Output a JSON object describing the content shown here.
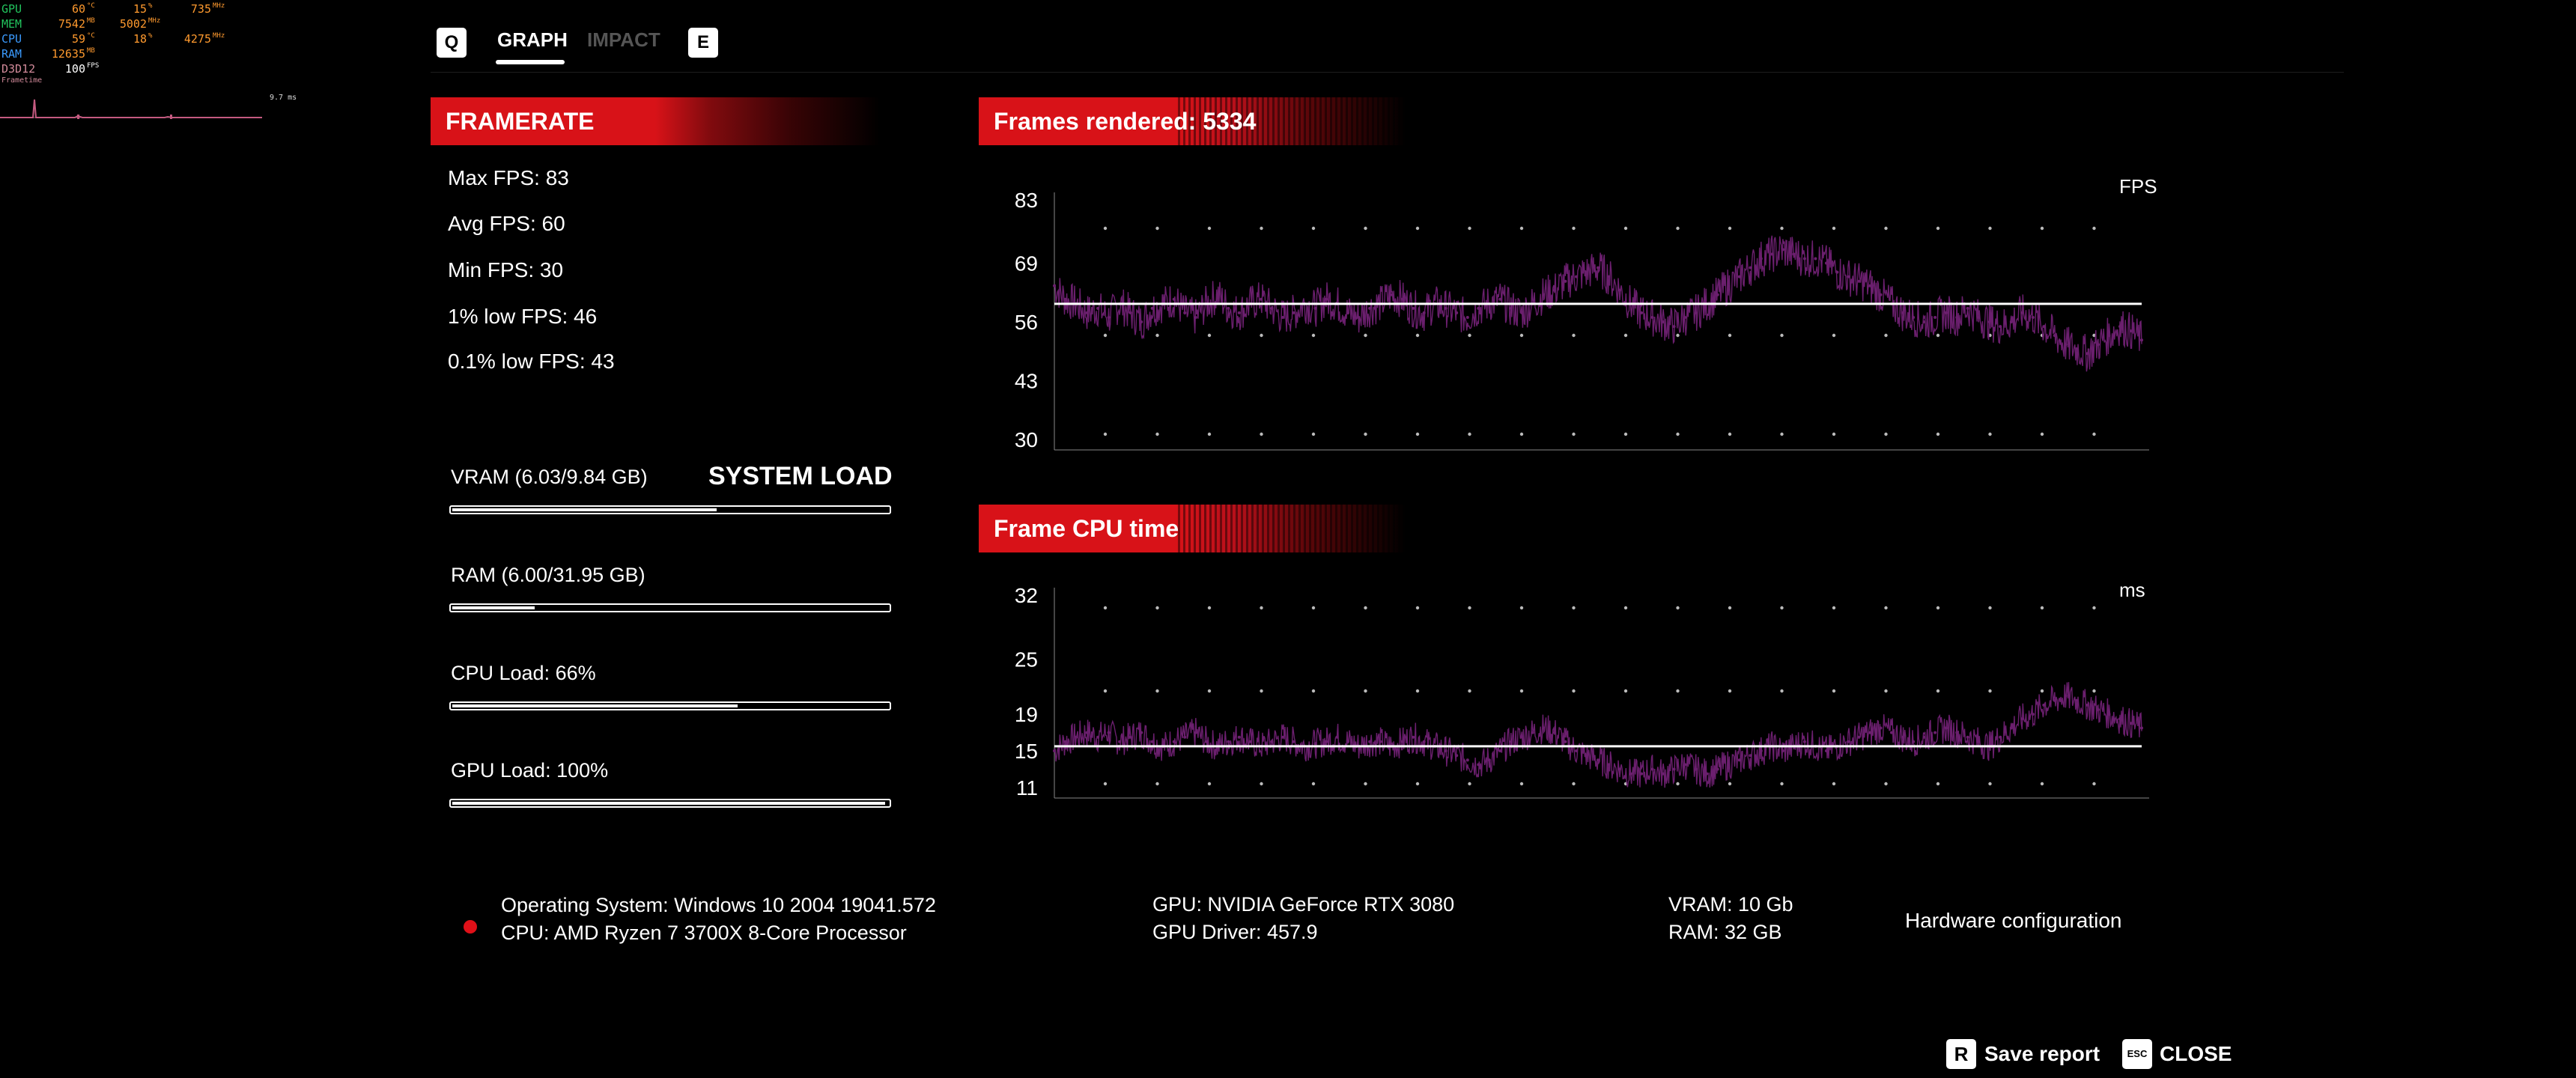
{
  "osd": {
    "rows": [
      {
        "label": "GPU",
        "label_color": "#22c55e",
        "v1": "60",
        "u1": "°C",
        "v2": "15",
        "u2": "%",
        "v3": "735",
        "u3": "MHz"
      },
      {
        "label": "MEM",
        "label_color": "#22c55e",
        "v1": "7542",
        "u1": "MB",
        "v2": "5002",
        "u2": "MHz",
        "v3": "",
        "u3": ""
      },
      {
        "label": "CPU",
        "label_color": "#3b9bff",
        "v1": "59",
        "u1": "°C",
        "v2": "18",
        "u2": "%",
        "v3": "4275",
        "u3": "MHz"
      },
      {
        "label": "RAM",
        "label_color": "#3b9bff",
        "v1": "12635",
        "u1": "MB",
        "v2": "",
        "u2": "",
        "v3": "",
        "u3": ""
      },
      {
        "label": "D3D12",
        "label_color": "#d28a9a",
        "v1": "100",
        "u1": "FPS",
        "v2": "",
        "u2": "",
        "v3": "",
        "u3": ""
      }
    ],
    "frametime_label": "Frametime",
    "frametime_value": "9.7 ms"
  },
  "tabs": {
    "left_key": "Q",
    "right_key": "E",
    "items": [
      {
        "label": "GRAPH",
        "active": true
      },
      {
        "label": "IMPACT",
        "active": false
      }
    ]
  },
  "framerate": {
    "title": "FRAMERATE",
    "stats": [
      "Max FPS: 83",
      "Avg FPS: 60",
      "Min FPS: 30",
      "1% low FPS: 46",
      "0.1% low FPS: 43"
    ]
  },
  "system_load": {
    "title": "SYSTEM LOAD",
    "items": [
      {
        "label": "VRAM (6.03/9.84 GB)",
        "fraction": 0.61
      },
      {
        "label": "RAM (6.00/31.95 GB)",
        "fraction": 0.19
      },
      {
        "label": "CPU Load: 66%",
        "fraction": 0.66
      },
      {
        "label": "GPU Load: 100%",
        "fraction": 1.0
      }
    ]
  },
  "fps_chart": {
    "banner": "Frames rendered: 5334",
    "unit": "FPS"
  },
  "cpu_chart": {
    "banner": "Frame CPU time",
    "unit": "ms"
  },
  "chart_data": [
    {
      "type": "line",
      "title": "Frames rendered: 5334",
      "ylabel": "FPS",
      "yticks": [
        30,
        43,
        56,
        69,
        83
      ],
      "ylim": [
        30,
        83
      ],
      "average": 60,
      "series_color": "#6b1f6e",
      "series": [
        {
          "values": [
            64,
            61,
            60,
            58,
            59,
            57,
            60,
            58,
            56,
            59,
            60,
            61,
            58,
            57,
            60,
            62,
            59,
            58,
            60,
            61,
            59,
            57,
            58,
            60,
            59,
            61,
            60,
            58,
            57,
            59,
            60,
            62,
            61,
            59,
            58,
            60,
            59,
            58,
            57,
            59,
            60,
            61,
            59,
            58,
            60,
            62,
            63,
            65,
            66,
            67,
            68,
            66,
            63,
            60,
            58,
            57,
            56,
            55,
            57,
            58,
            60,
            62,
            64,
            66,
            68,
            70,
            71,
            72,
            71,
            70,
            70,
            69,
            67,
            66,
            65,
            64,
            62,
            60,
            58,
            57,
            56,
            57,
            58,
            57,
            59,
            57,
            56,
            55,
            56,
            58,
            57,
            55,
            53,
            51,
            50,
            49,
            51,
            53,
            55,
            54,
            52
          ]
        }
      ]
    },
    {
      "type": "line",
      "title": "Frame CPU time",
      "ylabel": "ms",
      "yticks": [
        11,
        15,
        19,
        25,
        32
      ],
      "ylim": [
        11,
        32
      ],
      "average": 15.5,
      "series_color": "#6b1f6e",
      "series": [
        {
          "values": [
            15,
            16,
            16.5,
            17,
            16.5,
            17,
            16,
            16.5,
            17,
            16,
            15.5,
            16,
            16.5,
            17,
            16,
            15.5,
            16,
            16.5,
            16,
            15.5,
            16,
            16.5,
            16,
            15.5,
            15.8,
            16,
            16.5,
            16,
            15.5,
            16,
            16,
            15.5,
            16,
            16.5,
            16,
            15.5,
            15,
            14.5,
            14,
            13.5,
            14,
            15,
            16,
            16.5,
            17,
            17.5,
            17,
            16,
            15,
            14.5,
            14,
            13.5,
            13,
            12.5,
            12.5,
            13,
            12.5,
            13,
            13.5,
            13,
            12.5,
            13,
            13.5,
            14,
            14.5,
            15,
            15.5,
            15,
            15.5,
            16,
            15.5,
            15,
            15.5,
            16,
            16.5,
            17,
            17.5,
            17,
            16.5,
            16,
            16.5,
            17,
            17.5,
            17,
            16.5,
            16,
            15.5,
            16.5,
            17.5,
            18.5,
            19,
            20,
            20.5,
            21,
            20.5,
            20,
            19.5,
            19,
            18.5,
            18,
            17.5
          ]
        }
      ]
    }
  ],
  "hardware": {
    "os": "Operating System: Windows 10 2004 19041.572",
    "cpu": "CPU: AMD Ryzen 7 3700X 8-Core Processor",
    "gpu": "GPU: NVIDIA GeForce RTX 3080",
    "gpu_driver": "GPU Driver: 457.9",
    "vram": "VRAM: 10 Gb",
    "ram": "RAM: 32 GB",
    "title": "Hardware configuration"
  },
  "footer": {
    "save_key": "R",
    "save_label": "Save report",
    "close_key": "ESC",
    "close_label": "CLOSE"
  }
}
